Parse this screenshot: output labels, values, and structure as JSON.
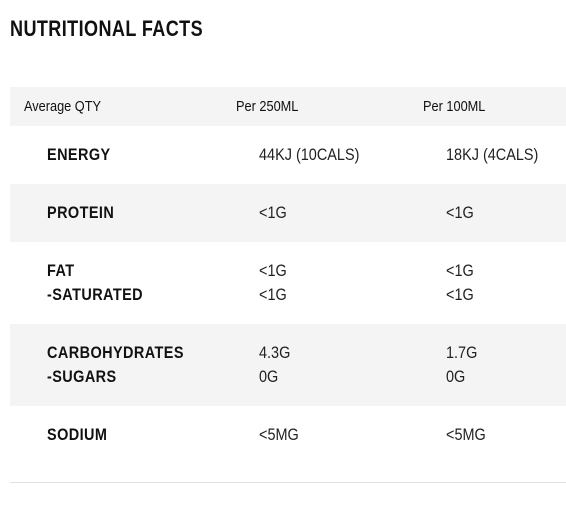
{
  "header": {
    "title": "NUTRITIONAL FACTS"
  },
  "table": {
    "columns": [
      "Average QTY",
      "Per 250ML",
      "Per 100ML"
    ],
    "rows": [
      [
        [
          "ENERGY"
        ],
        [
          "44KJ (10CALS)"
        ],
        [
          "18KJ (4CALS)"
        ]
      ],
      [
        [
          "PROTEIN"
        ],
        [
          "<1G"
        ],
        [
          "<1G"
        ]
      ],
      [
        [
          "FAT",
          "-SATURATED"
        ],
        [
          "<1G",
          "<1G"
        ],
        [
          "<1G",
          "<1G"
        ]
      ],
      [
        [
          "CARBOHYDRATES",
          "-SUGARS"
        ],
        [
          "4.3G",
          "0G"
        ],
        [
          "1.7G",
          "0G"
        ]
      ],
      [
        [
          "SODIUM"
        ],
        [
          "<5MG"
        ],
        [
          "<5MG"
        ]
      ]
    ]
  }
}
